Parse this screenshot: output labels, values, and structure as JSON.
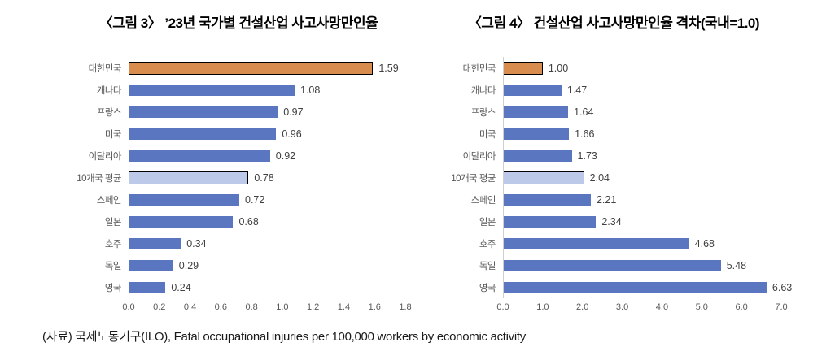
{
  "chart_data": [
    {
      "type": "bar",
      "orientation": "horizontal",
      "title": "〈그림 3〉 ’23년 국가별 건설산업 사고사망만인율",
      "categories": [
        "대한민국",
        "캐나다",
        "프랑스",
        "미국",
        "이탈리아",
        "10개국 평균",
        "스페인",
        "일본",
        "호주",
        "독일",
        "영국"
      ],
      "values": [
        1.59,
        1.08,
        0.97,
        0.96,
        0.92,
        0.78,
        0.72,
        0.68,
        0.34,
        0.29,
        0.24
      ],
      "value_labels": [
        "1.59",
        "1.08",
        "0.97",
        "0.96",
        "0.92",
        "0.78",
        "0.72",
        "0.68",
        "0.34",
        "0.29",
        "0.24"
      ],
      "bar_styles": [
        "highlight",
        "normal",
        "normal",
        "normal",
        "normal",
        "average",
        "normal",
        "normal",
        "normal",
        "normal",
        "normal"
      ],
      "axis": {
        "min": 0.0,
        "max": 1.8,
        "ticks": [
          "0.0",
          "0.2",
          "0.4",
          "0.6",
          "0.8",
          "1.0",
          "1.2",
          "1.4",
          "1.6",
          "1.8"
        ]
      },
      "grid": false,
      "legend": "none"
    },
    {
      "type": "bar",
      "orientation": "horizontal",
      "title": "〈그림 4〉 건설산업 사고사망만인율 격차(국내=1.0)",
      "categories": [
        "대한민국",
        "캐나다",
        "프랑스",
        "미국",
        "이탈리아",
        "10개국 평균",
        "스페인",
        "일본",
        "호주",
        "독일",
        "영국"
      ],
      "values": [
        1.0,
        1.47,
        1.64,
        1.66,
        1.73,
        2.04,
        2.21,
        2.34,
        4.68,
        5.48,
        6.63
      ],
      "value_labels": [
        "1.00",
        "1.47",
        "1.64",
        "1.66",
        "1.73",
        "2.04",
        "2.21",
        "2.34",
        "4.68",
        "5.48",
        "6.63"
      ],
      "bar_styles": [
        "highlight",
        "normal",
        "normal",
        "normal",
        "normal",
        "average",
        "normal",
        "normal",
        "normal",
        "normal",
        "normal"
      ],
      "axis": {
        "min": 0.0,
        "max": 7.0,
        "ticks": [
          "0.0",
          "1.0",
          "2.0",
          "3.0",
          "4.0",
          "5.0",
          "6.0",
          "7.0"
        ]
      },
      "grid": false,
      "legend": "none"
    }
  ],
  "footer": "(자료) 국제노동기구(ILO), Fatal occupational injuries per 100,000 workers by economic activity",
  "colors": {
    "highlight_bar": "#D88C4D",
    "normal_bar": "#5B76C0",
    "average_bar": "#BDC9E8",
    "bar_border": "#000000",
    "axis_line": "#CFCFCF",
    "category_text": "#595959",
    "value_text": "#404040",
    "title_text": "#000000"
  }
}
